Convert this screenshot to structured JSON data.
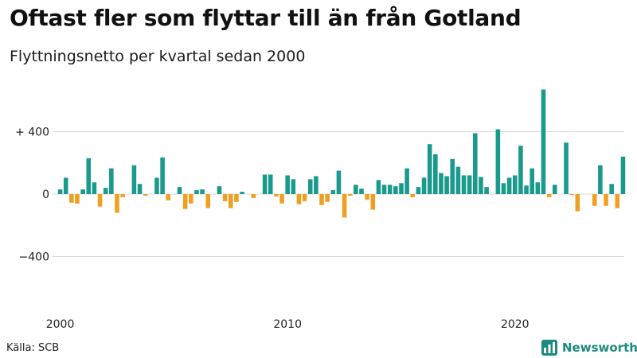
{
  "title": "Oftast fler som flyttar till än från Gotland",
  "subtitle": "Flyttningsnetto per kvartal sedan 2000",
  "source": "Källa: SCB",
  "brand": "Newsworthy",
  "colors": {
    "positive": "#1a9a8c",
    "negative": "#f0a020",
    "brand": "#1c8a80",
    "grid": "#d9d9d9"
  },
  "chart_data": {
    "type": "bar",
    "title": "Oftast fler som flyttar till än från Gotland",
    "subtitle": "Flyttningsnetto per kvartal sedan 2000",
    "ylim": [
      -550,
      700
    ],
    "yticks": [
      400,
      0,
      -400
    ],
    "ytick_labels": [
      "+ 400",
      "0",
      "−400"
    ],
    "xticks": [
      "2000",
      "2010",
      "2020"
    ],
    "grid": true,
    "categories": [
      "2000 Q1",
      "2000 Q2",
      "2000 Q3",
      "2000 Q4",
      "2001 Q1",
      "2001 Q2",
      "2001 Q3",
      "2001 Q4",
      "2002 Q1",
      "2002 Q2",
      "2002 Q3",
      "2002 Q4",
      "2003 Q1",
      "2003 Q2",
      "2003 Q3",
      "2003 Q4",
      "2004 Q1",
      "2004 Q2",
      "2004 Q3",
      "2004 Q4",
      "2005 Q1",
      "2005 Q2",
      "2005 Q3",
      "2005 Q4",
      "2006 Q1",
      "2006 Q2",
      "2006 Q3",
      "2006 Q4",
      "2007 Q1",
      "2007 Q2",
      "2007 Q3",
      "2007 Q4",
      "2008 Q1",
      "2008 Q2",
      "2008 Q3",
      "2008 Q4",
      "2009 Q1",
      "2009 Q2",
      "2009 Q3",
      "2009 Q4",
      "2010 Q1",
      "2010 Q2",
      "2010 Q3",
      "2010 Q4",
      "2011 Q1",
      "2011 Q2",
      "2011 Q3",
      "2011 Q4",
      "2012 Q1",
      "2012 Q2",
      "2012 Q3",
      "2012 Q4",
      "2013 Q1",
      "2013 Q2",
      "2013 Q3",
      "2013 Q4",
      "2014 Q1",
      "2014 Q2",
      "2014 Q3",
      "2014 Q4",
      "2015 Q1",
      "2015 Q2",
      "2015 Q3",
      "2015 Q4",
      "2016 Q1",
      "2016 Q2",
      "2016 Q3",
      "2016 Q4",
      "2017 Q1",
      "2017 Q2",
      "2017 Q3",
      "2017 Q4",
      "2018 Q1",
      "2018 Q2",
      "2018 Q3",
      "2018 Q4",
      "2019 Q1",
      "2019 Q2",
      "2019 Q3",
      "2019 Q4",
      "2020 Q1",
      "2020 Q2",
      "2020 Q3",
      "2020 Q4",
      "2021 Q1",
      "2021 Q2",
      "2021 Q3",
      "2021 Q4",
      "2022 Q1",
      "2022 Q2",
      "2022 Q3",
      "2022 Q4",
      "2023 Q1",
      "2023 Q2",
      "2023 Q3",
      "2023 Q4",
      "2024 Q1",
      "2024 Q2",
      "2024 Q3",
      "2024 Q4"
    ],
    "values": [
      30,
      105,
      -55,
      -60,
      30,
      230,
      75,
      -80,
      40,
      165,
      -120,
      -20,
      0,
      185,
      65,
      -10,
      0,
      105,
      235,
      -40,
      0,
      45,
      -95,
      -60,
      25,
      30,
      -90,
      0,
      50,
      -45,
      -90,
      -50,
      15,
      0,
      -25,
      0,
      125,
      125,
      -15,
      -60,
      120,
      95,
      -65,
      -45,
      95,
      115,
      -70,
      -50,
      25,
      150,
      -150,
      -10,
      60,
      35,
      -35,
      -100,
      90,
      60,
      60,
      50,
      70,
      165,
      -20,
      45,
      105,
      320,
      255,
      135,
      115,
      225,
      175,
      120,
      120,
      390,
      110,
      45,
      0,
      415,
      70,
      105,
      120,
      310,
      55,
      165,
      75,
      670,
      -20,
      60,
      0,
      330,
      -5,
      -110,
      0,
      0,
      -75,
      185,
      -75,
      65,
      -90,
      240
    ]
  }
}
